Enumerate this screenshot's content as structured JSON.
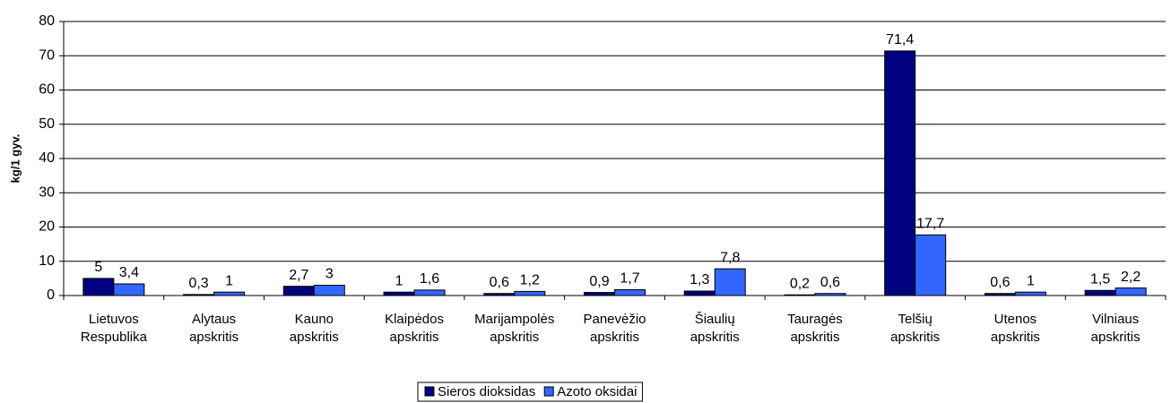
{
  "chart_data": {
    "type": "bar",
    "y_label": "kg/1 gyv.",
    "categories": [
      [
        "Lietuvos",
        "Respublika"
      ],
      [
        "Alytaus",
        "apskritis"
      ],
      [
        "Kauno",
        "apskritis"
      ],
      [
        "Klaipėdos",
        "apskritis"
      ],
      [
        "Marijampolės",
        "apskritis"
      ],
      [
        "Panevėžio",
        "apskritis"
      ],
      [
        "Šiaulių",
        "apskritis"
      ],
      [
        "Tauragės",
        "apskritis"
      ],
      [
        "Telšių",
        "apskritis"
      ],
      [
        "Utenos",
        "apskritis"
      ],
      [
        "Vilniaus",
        "apskritis"
      ]
    ],
    "series": [
      {
        "name": "Sieros dioksidas",
        "color": "#000080",
        "values": [
          5,
          0.3,
          2.7,
          1,
          0.6,
          0.9,
          1.3,
          0.2,
          71.4,
          0.6,
          1.5
        ],
        "value_labels": [
          "5",
          "0,3",
          "2,7",
          "1",
          "0,6",
          "0,9",
          "1,3",
          "0,2",
          "71,4",
          "0,6",
          "1,5"
        ]
      },
      {
        "name": "Azoto oksidai",
        "color": "#3366ff",
        "values": [
          3.4,
          1,
          3,
          1.6,
          1.2,
          1.7,
          7.8,
          0.6,
          17.7,
          1,
          2.2
        ],
        "value_labels": [
          "3,4",
          "1",
          "3",
          "1,6",
          "1,2",
          "1,7",
          "7,8",
          "0,6",
          "17,7",
          "1",
          "2,2"
        ]
      }
    ],
    "ylim": [
      0,
      80
    ],
    "yticks": [
      0,
      10,
      20,
      30,
      40,
      50,
      60,
      70,
      80
    ],
    "grid": true,
    "legend": "bottom"
  }
}
